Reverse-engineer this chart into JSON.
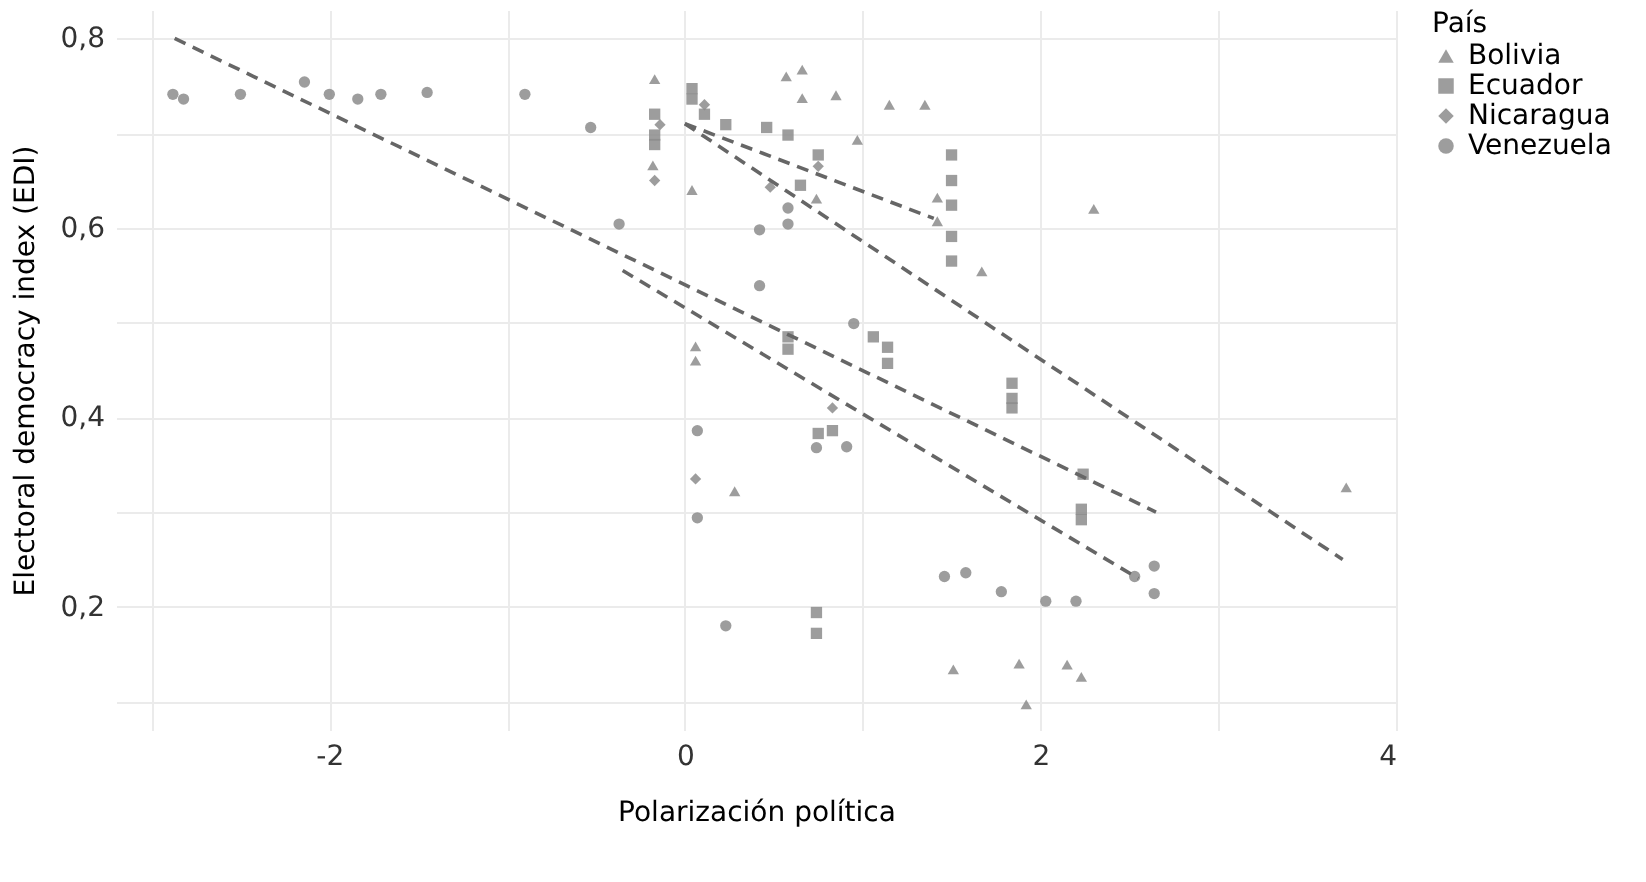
{
  "chart_data": {
    "type": "scatter",
    "xlabel": "Polarización política",
    "ylabel": "Electoral democracy index (EDI)",
    "legend_title": "País",
    "legend": "right",
    "grid": true,
    "xlim": [
      -3.2,
      4.0
    ],
    "ylim": [
      0.07,
      0.83
    ],
    "xticks": [
      {
        "value": -3,
        "label": null
      },
      -2,
      {
        "value": -1,
        "label": null
      },
      0,
      {
        "value": 1,
        "label": null
      },
      2,
      {
        "value": 3,
        "label": null
      },
      4
    ],
    "yticks": [
      {
        "value": 0.1,
        "label": null
      },
      {
        "value": 0.2,
        "label": "0,2"
      },
      {
        "value": 0.3,
        "label": null
      },
      {
        "value": 0.4,
        "label": "0,4"
      },
      {
        "value": 0.5,
        "label": null
      },
      {
        "value": 0.6,
        "label": "0,6"
      },
      {
        "value": 0.7,
        "label": null
      },
      {
        "value": 0.8,
        "label": "0,8"
      }
    ],
    "series": [
      {
        "name": "Bolivia",
        "color": "#8c8c8c",
        "marker": "triangle",
        "x": [
          -0.17,
          0.57,
          0.66,
          0.66,
          0.85,
          1.15,
          1.35,
          0.97,
          1.42,
          1.42,
          1.67,
          2.3,
          3.72,
          0.28,
          0.06,
          0.06,
          -0.18,
          0.74,
          1.51,
          1.88,
          1.92,
          2.15,
          2.23,
          0.04
        ],
        "values": [
          0.757,
          0.76,
          0.767,
          0.737,
          0.74,
          0.73,
          0.73,
          0.693,
          0.632,
          0.607,
          0.554,
          0.62,
          0.326,
          0.322,
          0.475,
          0.46,
          0.666,
          0.631,
          0.134,
          0.14,
          0.097,
          0.139,
          0.126,
          0.64
        ]
      },
      {
        "name": "Ecuador",
        "color": "#8c8c8c",
        "marker": "square",
        "x": [
          -0.17,
          -0.17,
          -0.17,
          0.04,
          0.04,
          0.11,
          0.23,
          0.46,
          0.58,
          1.5,
          1.5,
          1.5,
          1.5,
          1.5,
          1.84,
          1.84,
          1.84,
          2.23,
          2.23,
          2.24,
          0.75,
          0.75,
          0.83,
          0.74,
          0.74,
          0.65,
          1.06,
          1.14,
          1.14,
          0.58,
          0.58
        ],
        "values": [
          0.688,
          0.72,
          0.698,
          0.747,
          0.736,
          0.72,
          0.709,
          0.706,
          0.698,
          0.677,
          0.65,
          0.624,
          0.591,
          0.565,
          0.436,
          0.42,
          0.41,
          0.303,
          0.292,
          0.34,
          0.677,
          0.383,
          0.386,
          0.194,
          0.172,
          0.645,
          0.485,
          0.474,
          0.457,
          0.485,
          0.472
        ]
      },
      {
        "name": "Nicaragua",
        "color": "#8c8c8c",
        "marker": "diamond",
        "x": [
          -0.17,
          -0.14,
          0.48,
          0.06,
          0.75,
          0.83,
          0.11
        ],
        "values": [
          0.65,
          0.709,
          0.643,
          0.335,
          0.665,
          0.41,
          0.73
        ]
      },
      {
        "name": "Venezuela",
        "color": "#8c8c8c",
        "marker": "circle",
        "x": [
          -2.88,
          -2.82,
          -2.5,
          -2.14,
          -2.0,
          -1.84,
          -1.71,
          -1.45,
          -0.9,
          -0.53,
          -0.37,
          0.42,
          0.42,
          0.95,
          0.74,
          0.91,
          0.07,
          0.07,
          0.23,
          1.78,
          2.03,
          2.2,
          2.64,
          2.64,
          2.53,
          1.58,
          1.46,
          0.58,
          0.58
        ],
        "values": [
          0.741,
          0.736,
          0.741,
          0.754,
          0.741,
          0.736,
          0.741,
          0.743,
          0.741,
          0.706,
          0.604,
          0.598,
          0.539,
          0.499,
          0.368,
          0.369,
          0.386,
          0.294,
          0.18,
          0.216,
          0.206,
          0.206,
          0.214,
          0.243,
          0.232,
          0.236,
          0.232,
          0.621,
          0.604
        ]
      },
      {
        "type": "line",
        "color": "#666666",
        "line_style": "dashed",
        "x": [
          -2.87,
          2.65
        ],
        "values": [
          0.8,
          0.3
        ]
      },
      {
        "type": "line",
        "color": "#666666",
        "line_style": "dashed",
        "x": [
          -0.35,
          2.55
        ],
        "values": [
          0.555,
          0.23
        ]
      },
      {
        "type": "line",
        "color": "#666666",
        "line_style": "dashed",
        "x": [
          0.0,
          3.7
        ],
        "values": [
          0.71,
          0.25
        ]
      },
      {
        "type": "line",
        "color": "#666666",
        "line_style": "dashed",
        "x": [
          0.0,
          1.4
        ],
        "values": [
          0.71,
          0.61
        ]
      }
    ]
  }
}
